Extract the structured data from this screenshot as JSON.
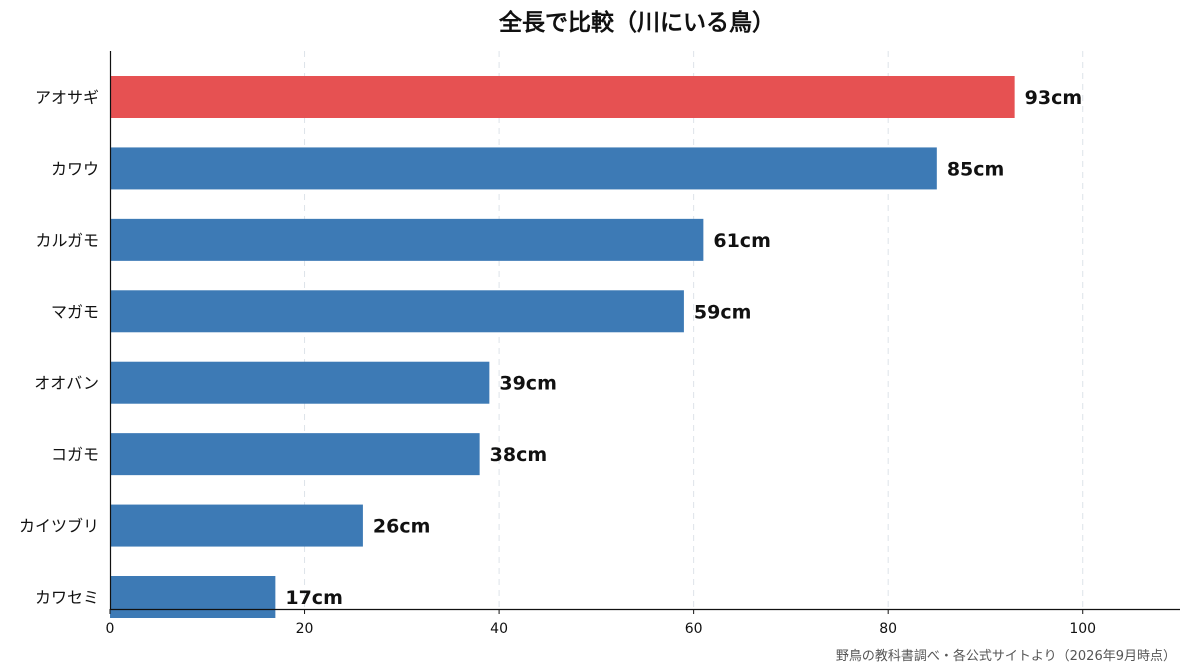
{
  "chart_data": {
    "type": "bar",
    "orientation": "horizontal",
    "title": "全長で比較（川にいる鳥）",
    "source": "野鳥の教科書調べ・各公式サイトより（2026年9月時点）",
    "categories": [
      "アオサギ",
      "カワウ",
      "カルガモ",
      "マガモ",
      "オオバン",
      "コガモ",
      "カイツブリ",
      "カワセミ"
    ],
    "values": [
      93,
      85,
      61,
      59,
      39,
      38,
      26,
      17
    ],
    "value_labels": [
      "93cm",
      "85cm",
      "61cm",
      "59cm",
      "39cm",
      "38cm",
      "26cm",
      "17cm"
    ],
    "highlight_index": 0,
    "colors": {
      "bar": "#3d7ab5",
      "highlight": "#e65152"
    },
    "xticks": [
      0,
      20,
      40,
      60,
      80,
      100
    ],
    "xlim": [
      0,
      110
    ],
    "grid": "vertical dashed",
    "xlabel": "",
    "ylabel": ""
  }
}
